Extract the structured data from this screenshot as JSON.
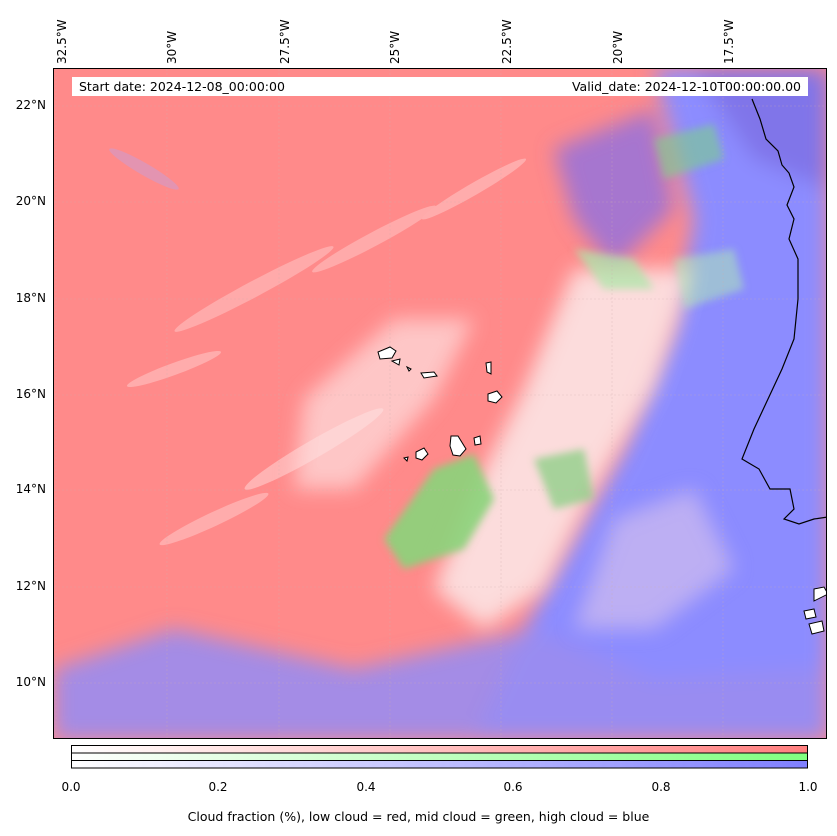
{
  "map": {
    "start_label": "Start date: 2024-12-08_00:00:00",
    "valid_label": "Valid_date: 2024-12-10T00:00:00.00",
    "lon_labels": [
      "32.5°W",
      "30°W",
      "27.5°W",
      "25°W",
      "22.5°W",
      "20°W",
      "17.5°W"
    ],
    "lat_labels": [
      "22°N",
      "20°N",
      "18°N",
      "16°N",
      "14°N",
      "12°N",
      "10°N"
    ],
    "colors": {
      "low_cloud": "#ff8080",
      "mid_cloud": "#80ff80",
      "high_cloud": "#8080ff",
      "coastline": "#000000"
    }
  },
  "colorbar": {
    "ticks": [
      "0.0",
      "0.2",
      "0.4",
      "0.6",
      "0.8",
      "1.0"
    ],
    "label": "Cloud fraction (%), low cloud = red, mid cloud = green, high cloud = blue"
  }
}
